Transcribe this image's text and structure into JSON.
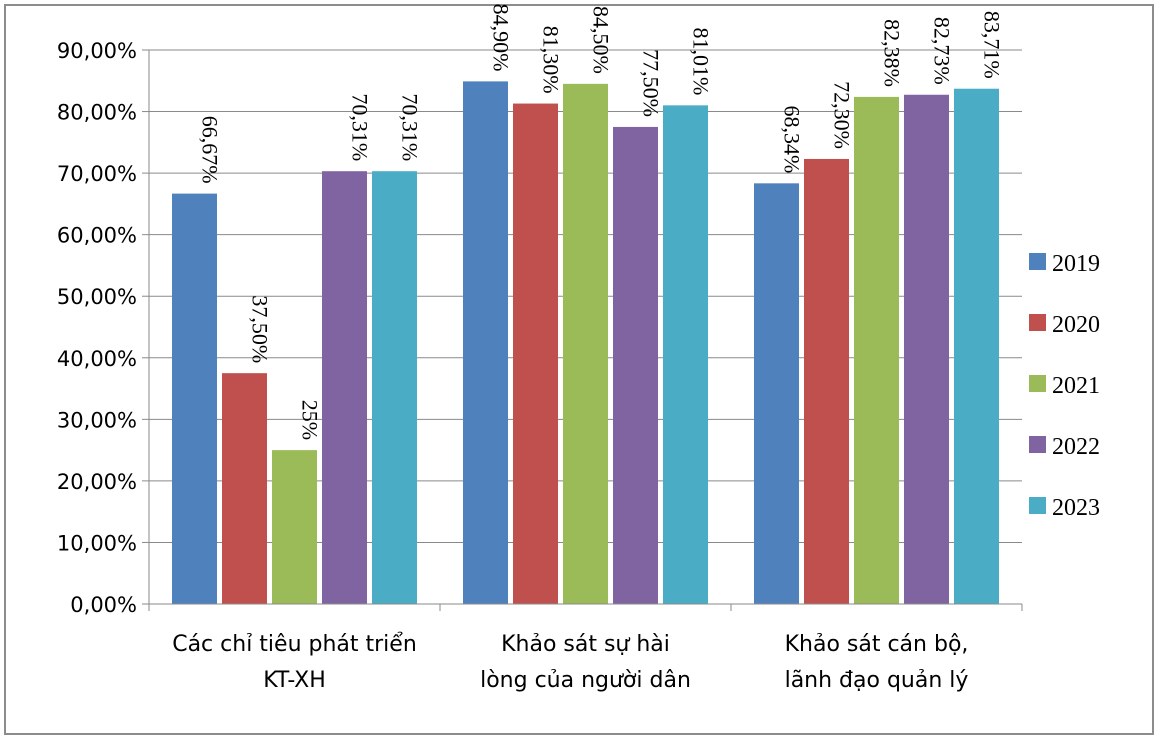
{
  "chart_data": {
    "type": "bar",
    "title": "",
    "xlabel": "",
    "ylabel": "",
    "ylim": [
      0,
      90
    ],
    "y_ticks": [
      "0,00%",
      "10,00%",
      "20,00%",
      "30,00%",
      "40,00%",
      "50,00%",
      "60,00%",
      "70,00%",
      "80,00%",
      "90,00%"
    ],
    "grid": true,
    "legend_position": "right",
    "categories": [
      [
        "Các chỉ tiêu phát triển",
        "KT-XH"
      ],
      [
        "Khảo sát sự hài",
        "lòng của người dân"
      ],
      [
        "Khảo sát cán bộ,",
        "lãnh đạo quản lý"
      ]
    ],
    "series": [
      {
        "name": "2019",
        "color": "#4f81bd",
        "values": [
          66.67,
          84.9,
          68.34
        ],
        "labels": [
          "66,67%",
          "84,90%",
          "68,34%"
        ]
      },
      {
        "name": "2020",
        "color": "#c0504d",
        "values": [
          37.5,
          81.3,
          72.3
        ],
        "labels": [
          "37,50%",
          "81,30%",
          "72,30%"
        ]
      },
      {
        "name": "2021",
        "color": "#9bbb59",
        "values": [
          25.0,
          84.5,
          82.38
        ],
        "labels": [
          "25%",
          "84,50%",
          "82,38%"
        ]
      },
      {
        "name": "2022",
        "color": "#8064a2",
        "values": [
          70.31,
          77.5,
          82.73
        ],
        "labels": [
          "70,31%",
          "77,50%",
          "82,73%"
        ]
      },
      {
        "name": "2023",
        "color": "#4bacc6",
        "values": [
          70.31,
          81.01,
          83.71
        ],
        "labels": [
          "70,31%",
          "81,01%",
          "83,71%"
        ]
      }
    ]
  }
}
